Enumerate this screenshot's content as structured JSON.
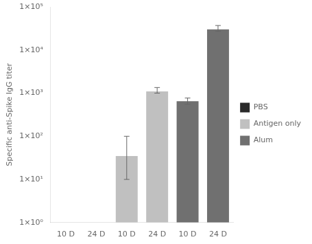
{
  "chart_data": {
    "type": "bar",
    "categories": [
      "10 D",
      "24 D",
      "10 D",
      "24 D",
      "10 D",
      "24 D"
    ],
    "series": [
      {
        "name": "PBS",
        "color": "#2a2a2a",
        "values": [
          1.0,
          1.0,
          null,
          null,
          null,
          null
        ],
        "error_upper": [
          0,
          0,
          null,
          null,
          null,
          null
        ],
        "error_lower": [
          0,
          0,
          null,
          null,
          null,
          null
        ]
      },
      {
        "name": "Antigen only",
        "color": "#c0c0c0",
        "values": [
          null,
          null,
          35,
          1100,
          null,
          null
        ],
        "error_upper": [
          null,
          null,
          65,
          250,
          null,
          null
        ],
        "error_lower": [
          null,
          null,
          25,
          100,
          null,
          null
        ]
      },
      {
        "name": "Alum",
        "color": "#707070",
        "values": [
          null,
          null,
          null,
          null,
          650,
          30000
        ],
        "error_upper": [
          null,
          null,
          null,
          null,
          120,
          7000
        ],
        "error_lower": [
          null,
          null,
          null,
          null,
          100,
          3000
        ]
      }
    ],
    "ylabel": "Specific anti-Spike IgG titer",
    "log": "y",
    "ylim": [
      1,
      100000
    ],
    "yticks": [
      {
        "value": 1,
        "label": "1×10⁰"
      },
      {
        "value": 10,
        "label": "1×10¹"
      },
      {
        "value": 100,
        "label": "1×10²"
      },
      {
        "value": 1000,
        "label": "1×10³"
      },
      {
        "value": 10000,
        "label": "1×10⁴"
      },
      {
        "value": 100000,
        "label": "1×10⁵"
      }
    ],
    "grid": false,
    "legend": "right"
  }
}
